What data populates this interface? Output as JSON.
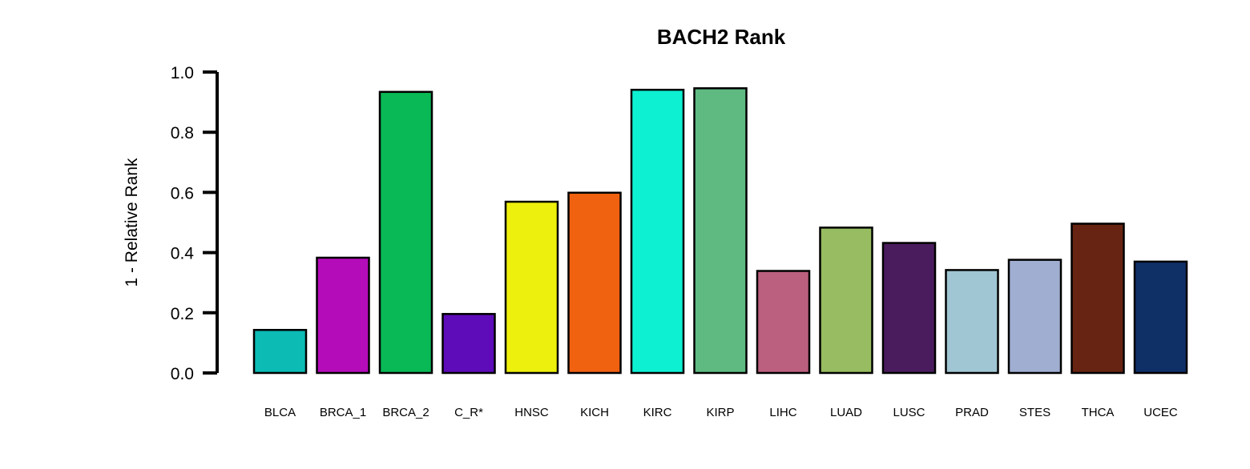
{
  "chart_data": {
    "type": "bar",
    "title": "BACH2 Rank",
    "xlabel": "",
    "ylabel": "1 - Relative Rank",
    "ylim": [
      0,
      1
    ],
    "yticks": [
      "0.0",
      "0.2",
      "0.4",
      "0.6",
      "0.8",
      "1.0"
    ],
    "grid": false,
    "categories": [
      "BLCA",
      "BRCA_1",
      "BRCA_2",
      "C_R*",
      "HNSC",
      "KICH",
      "KIRC",
      "KIRP",
      "LIHC",
      "LUAD",
      "LUSC",
      "PRAD",
      "STES",
      "THCA",
      "UCEC"
    ],
    "values": [
      0.143,
      0.383,
      0.934,
      0.196,
      0.569,
      0.599,
      0.941,
      0.946,
      0.339,
      0.483,
      0.432,
      0.342,
      0.376,
      0.496,
      0.37
    ],
    "colors": [
      "#0BBBB4",
      "#B50CBA",
      "#08B956",
      "#5E0CBA",
      "#EDEF0C",
      "#F06110",
      "#0DF0D2",
      "#5FBA81",
      "#BC607F",
      "#97BC61",
      "#4A1C5E",
      "#A1C6D3",
      "#A0AED1",
      "#672412",
      "#0F2F67"
    ]
  }
}
